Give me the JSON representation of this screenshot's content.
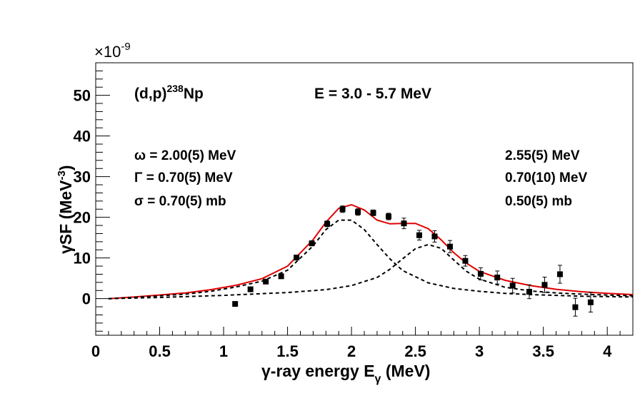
{
  "chart_data": {
    "type": "scatter",
    "title": "",
    "xlabel": "γ-ray energy E_γ (MeV)",
    "ylabel": "γSF (MeV^-3)",
    "y_exponent_label": "×10^-9",
    "xlim": [
      0,
      4.2
    ],
    "ylim": [
      -9,
      58
    ],
    "x_ticks": [
      0,
      0.5,
      1,
      1.5,
      2,
      2.5,
      3,
      3.5,
      4
    ],
    "x_tick_labels": [
      "0",
      "0.5",
      "1",
      "1.5",
      "2",
      "2.5",
      "3",
      "3.5",
      "4"
    ],
    "y_ticks": [
      0,
      10,
      20,
      30,
      40,
      50
    ],
    "y_tick_labels": [
      "0",
      "10",
      "20",
      "30",
      "40",
      "50"
    ],
    "grid": false,
    "annotations": {
      "reaction": "(d,p)",
      "reaction_mass": "238",
      "reaction_nucleus": "Np",
      "energy_range": "E = 3.0 - 5.7 MeV",
      "omega_label": "ω = 2.00(5) MeV",
      "gamma_label": "Γ = 0.70(5) MeV",
      "sigma_label": "σ = 0.70(5) mb",
      "omega2": "2.55(5) MeV",
      "gamma2": "0.70(10) MeV",
      "sigma2": "0.50(5) mb"
    },
    "series": [
      {
        "style": "markers-errorbars",
        "color": "#000000",
        "x": [
          1.09,
          1.21,
          1.33,
          1.45,
          1.57,
          1.69,
          1.81,
          1.93,
          2.05,
          2.17,
          2.29,
          2.41,
          2.53,
          2.65,
          2.77,
          2.89,
          3.01,
          3.14,
          3.26,
          3.39,
          3.51,
          3.63,
          3.75,
          3.87
        ],
        "y": [
          -1.3,
          2.3,
          4.2,
          5.5,
          10.1,
          13.6,
          18.4,
          22.0,
          21.3,
          21.1,
          20.2,
          18.5,
          15.6,
          15.3,
          12.8,
          9.3,
          6.1,
          5.2,
          3.2,
          1.7,
          3.4,
          6.0,
          -2.1,
          -0.9
        ],
        "yerr": [
          0.3,
          0.5,
          0.5,
          0.5,
          0.6,
          0.6,
          0.7,
          0.8,
          0.8,
          0.7,
          0.8,
          1.3,
          1.2,
          1.4,
          1.5,
          1.3,
          1.5,
          1.6,
          1.8,
          1.7,
          1.9,
          2.2,
          2.2,
          2.4
        ]
      },
      {
        "style": "solid-line",
        "color": "#e00000",
        "x": [
          0.1,
          0.3,
          0.5,
          0.7,
          0.9,
          1.1,
          1.3,
          1.5,
          1.7,
          1.8,
          1.9,
          2.0,
          2.1,
          2.2,
          2.3,
          2.4,
          2.5,
          2.6,
          2.7,
          2.8,
          2.9,
          3.0,
          3.2,
          3.4,
          3.6,
          3.8,
          4.0,
          4.2
        ],
        "y": [
          0.0,
          0.4,
          0.9,
          1.4,
          2.2,
          3.3,
          4.9,
          8.0,
          14.5,
          18.8,
          22.2,
          23.1,
          21.8,
          19.3,
          18.4,
          18.5,
          18.5,
          17.2,
          14.5,
          11.3,
          8.7,
          6.7,
          4.5,
          3.2,
          2.3,
          1.7,
          1.3,
          1.0
        ]
      },
      {
        "style": "dashed-line",
        "color": "#000000",
        "x": [
          0.1,
          0.3,
          0.5,
          0.7,
          0.9,
          1.1,
          1.3,
          1.5,
          1.7,
          1.8,
          1.9,
          2.0,
          2.1,
          2.2,
          2.3,
          2.4,
          2.6,
          2.8,
          3.0,
          3.2,
          3.4,
          3.6,
          3.8,
          4.0,
          4.2
        ],
        "y": [
          0.0,
          0.3,
          0.7,
          1.1,
          1.8,
          2.9,
          4.3,
          7.0,
          13.0,
          17.0,
          19.3,
          19.3,
          17.0,
          13.3,
          9.8,
          6.9,
          3.9,
          2.5,
          1.8,
          1.3,
          1.0,
          0.8,
          0.6,
          0.5,
          0.4
        ]
      },
      {
        "style": "dashed-line",
        "color": "#000000",
        "x": [
          0.1,
          0.5,
          1.0,
          1.5,
          1.8,
          2.0,
          2.2,
          2.3,
          2.4,
          2.5,
          2.6,
          2.7,
          2.8,
          2.9,
          3.0,
          3.2,
          3.4,
          3.6,
          3.8,
          4.0,
          4.2
        ],
        "y": [
          0.0,
          0.3,
          0.8,
          1.5,
          2.2,
          3.2,
          5.2,
          7.2,
          9.8,
          12.3,
          13.3,
          12.4,
          9.5,
          6.7,
          4.8,
          2.8,
          1.9,
          1.4,
          1.1,
          0.9,
          0.7
        ]
      }
    ]
  }
}
